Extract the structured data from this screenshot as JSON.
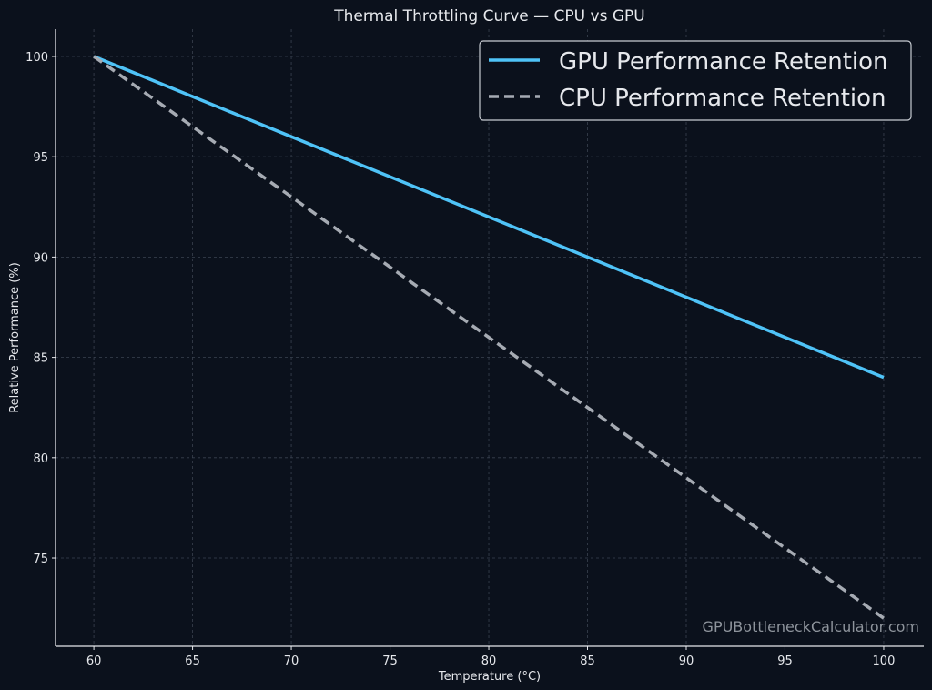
{
  "chart_data": {
    "type": "line",
    "title": "Thermal Throttling Curve — CPU vs GPU",
    "xlabel": "Temperature (°C)",
    "ylabel": "Relative Performance (%)",
    "xlim": [
      58.06,
      102.03
    ],
    "ylim": [
      70.6,
      101.36
    ],
    "xticks": [
      60,
      65,
      70,
      75,
      80,
      85,
      90,
      95,
      100
    ],
    "yticks": [
      75,
      80,
      85,
      90,
      95,
      100
    ],
    "grid": true,
    "legend_position": "top-right",
    "series": [
      {
        "name": "GPU Performance Retention",
        "x": [
          60,
          100
        ],
        "y": [
          100,
          84
        ],
        "color": "#4fc3f7",
        "style": "solid"
      },
      {
        "name": "CPU Performance Retention",
        "x": [
          60,
          100
        ],
        "y": [
          100,
          72
        ],
        "color": "#a6abb3",
        "style": "dashed"
      }
    ],
    "watermark": "GPUBottleneckCalculator.com"
  }
}
